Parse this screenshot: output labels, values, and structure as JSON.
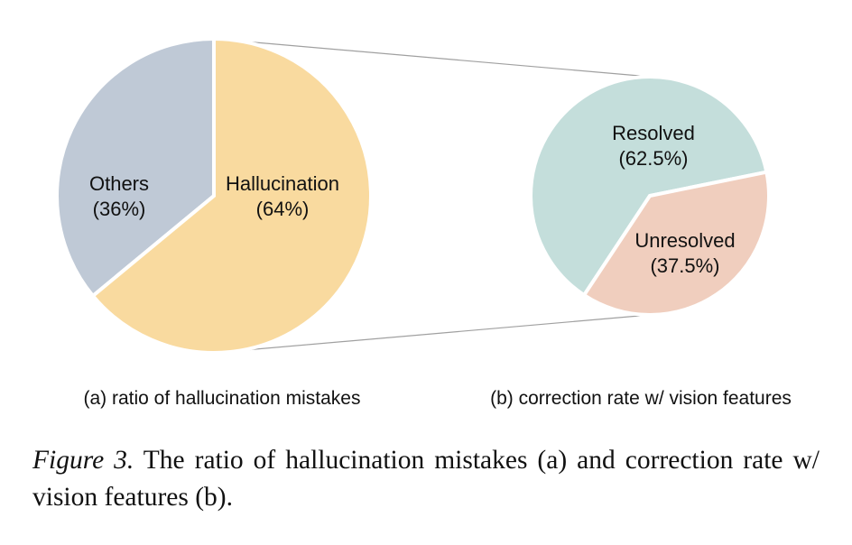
{
  "chart_data": [
    {
      "type": "pie",
      "categories": [
        "Others",
        "Hallucination"
      ],
      "values": [
        36,
        64
      ],
      "labels": [
        "(36%)",
        "(64%)"
      ],
      "colors": [
        "#bfc9d6",
        "#f9da9f"
      ],
      "subcaption": "(a) ratio of hallucination mistakes"
    },
    {
      "type": "pie",
      "categories": [
        "Resolved",
        "Unresolved"
      ],
      "values": [
        62.5,
        37.5
      ],
      "labels": [
        "(62.5%)",
        "(37.5%)"
      ],
      "colors": [
        "#c4dedb",
        "#f0cebe"
      ],
      "subcaption": "(b) correction rate w/ vision features"
    }
  ],
  "caption": {
    "label": "Figure 3.",
    "text": " The ratio of hallucination mistakes (a) and correction rate w/ vision features (b)."
  },
  "connector_color": "#a0a0a0"
}
